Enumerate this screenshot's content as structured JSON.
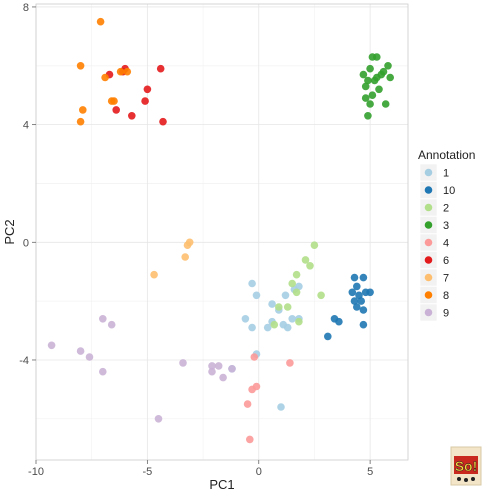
{
  "chart_data": {
    "type": "scatter",
    "xlabel": "PC1",
    "ylabel": "PC2",
    "xlim": [
      -10,
      6.7
    ],
    "ylim": [
      -7.4,
      8.1
    ],
    "x_ticks": [
      -10,
      -5,
      0,
      5
    ],
    "y_ticks": [
      -4,
      0,
      4,
      8
    ],
    "x_tick_labels": [
      "-10",
      "-5",
      "0",
      "5"
    ],
    "y_tick_labels": [
      "-4",
      "0",
      "4",
      "8"
    ],
    "grid": true,
    "legend_title": "Annotation",
    "legend_position": "right",
    "series": [
      {
        "name": "1",
        "color": "#a6cee3",
        "points": [
          [
            -0.3,
            -1.4
          ],
          [
            0.6,
            -2.1
          ],
          [
            1.2,
            -1.8
          ],
          [
            1.6,
            -1.6
          ],
          [
            1.8,
            -1.5
          ],
          [
            0.9,
            -2.3
          ],
          [
            0.4,
            -2.9
          ],
          [
            -0.3,
            -2.9
          ],
          [
            -0.6,
            -2.6
          ],
          [
            1.1,
            -2.8
          ],
          [
            1.3,
            -2.9
          ],
          [
            1.5,
            -2.6
          ],
          [
            1.8,
            -2.6
          ],
          [
            -0.1,
            -1.8
          ],
          [
            -0.1,
            -3.8
          ],
          [
            -1.2,
            -4.3
          ],
          [
            1.0,
            -5.6
          ],
          [
            0.6,
            -2.7
          ]
        ]
      },
      {
        "name": "10",
        "color": "#1f78b4",
        "points": [
          [
            4.3,
            -1.2
          ],
          [
            4.7,
            -1.2
          ],
          [
            4.4,
            -1.5
          ],
          [
            4.2,
            -1.7
          ],
          [
            4.5,
            -1.8
          ],
          [
            4.3,
            -2.0
          ],
          [
            4.6,
            -2.0
          ],
          [
            4.8,
            -1.7
          ],
          [
            5.0,
            -1.7
          ],
          [
            4.4,
            -2.2
          ],
          [
            4.7,
            -2.3
          ],
          [
            3.4,
            -2.6
          ],
          [
            3.6,
            -2.7
          ],
          [
            4.7,
            -2.8
          ],
          [
            3.1,
            -3.2
          ]
        ]
      },
      {
        "name": "2",
        "color": "#b2df8a",
        "points": [
          [
            2.5,
            -0.1
          ],
          [
            2.1,
            -0.6
          ],
          [
            2.3,
            -0.8
          ],
          [
            1.7,
            -1.1
          ],
          [
            1.5,
            -1.4
          ],
          [
            1.7,
            -1.7
          ],
          [
            2.8,
            -1.8
          ],
          [
            0.9,
            -2.2
          ],
          [
            0.7,
            -2.8
          ],
          [
            1.3,
            -2.2
          ],
          [
            1.8,
            -2.7
          ]
        ]
      },
      {
        "name": "3",
        "color": "#33a02c",
        "points": [
          [
            5.1,
            6.3
          ],
          [
            5.3,
            6.3
          ],
          [
            5.6,
            5.8
          ],
          [
            5.8,
            6.0
          ],
          [
            5.9,
            5.6
          ],
          [
            5.0,
            5.9
          ],
          [
            4.9,
            5.5
          ],
          [
            5.2,
            5.5
          ],
          [
            5.4,
            5.2
          ],
          [
            4.7,
            5.7
          ],
          [
            4.8,
            5.3
          ],
          [
            5.1,
            5.0
          ],
          [
            5.7,
            4.7
          ],
          [
            4.8,
            4.9
          ],
          [
            5.0,
            4.7
          ],
          [
            4.9,
            4.3
          ],
          [
            5.5,
            5.7
          ],
          [
            5.3,
            5.6
          ]
        ]
      },
      {
        "name": "4",
        "color": "#fb9a99",
        "points": [
          [
            -0.1,
            -4.9
          ],
          [
            -0.3,
            -5.0
          ],
          [
            -0.5,
            -5.5
          ],
          [
            -0.4,
            -6.7
          ],
          [
            1.4,
            -4.1
          ],
          [
            -0.2,
            -3.9
          ]
        ]
      },
      {
        "name": "6",
        "color": "#e31a1c",
        "points": [
          [
            -4.4,
            5.9
          ],
          [
            -6.0,
            5.9
          ],
          [
            -6.7,
            5.7
          ],
          [
            -5.0,
            5.2
          ],
          [
            -5.1,
            4.8
          ],
          [
            -6.4,
            4.5
          ],
          [
            -5.7,
            4.3
          ],
          [
            -4.3,
            4.1
          ],
          [
            -6.1,
            5.8
          ]
        ]
      },
      {
        "name": "7",
        "color": "#fdbf6f",
        "points": [
          [
            -3.1,
            0.0
          ],
          [
            -3.2,
            -0.1
          ],
          [
            -3.3,
            -0.5
          ],
          [
            -4.7,
            -1.1
          ]
        ]
      },
      {
        "name": "8",
        "color": "#ff7f00",
        "points": [
          [
            -7.1,
            7.5
          ],
          [
            -8.0,
            6.0
          ],
          [
            -6.9,
            5.6
          ],
          [
            -6.2,
            5.8
          ],
          [
            -7.9,
            4.5
          ],
          [
            -8.0,
            4.1
          ],
          [
            -6.5,
            4.8
          ],
          [
            -6.6,
            4.8
          ],
          [
            -5.9,
            5.8
          ]
        ]
      },
      {
        "name": "9",
        "color": "#cab2d6",
        "points": [
          [
            -9.3,
            -3.5
          ],
          [
            -8.0,
            -3.7
          ],
          [
            -7.6,
            -3.9
          ],
          [
            -7.0,
            -2.6
          ],
          [
            -6.6,
            -2.8
          ],
          [
            -7.0,
            -4.4
          ],
          [
            -4.5,
            -6.0
          ],
          [
            -3.4,
            -4.1
          ],
          [
            -2.1,
            -4.2
          ],
          [
            -1.8,
            -4.2
          ],
          [
            -2.1,
            -4.4
          ],
          [
            -1.6,
            -4.6
          ],
          [
            -1.2,
            -4.3
          ]
        ]
      }
    ]
  },
  "logo": {
    "text": "So!",
    "icon": "brand-badge-icon"
  }
}
